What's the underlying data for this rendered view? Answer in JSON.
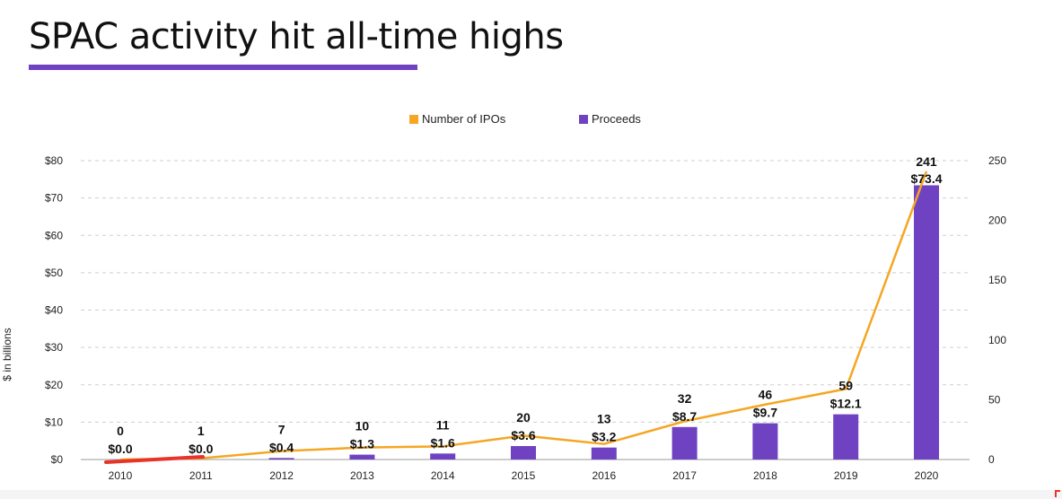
{
  "slide": {
    "title": "SPAC activity hit all-time highs",
    "accent_color": "#6f42c1"
  },
  "chart_data": {
    "type": "bar",
    "categories": [
      "2010",
      "2011",
      "2012",
      "2013",
      "2014",
      "2015",
      "2016",
      "2017",
      "2018",
      "2019",
      "2020"
    ],
    "series": [
      {
        "name": "Proceeds",
        "kind": "bar",
        "axis": "left",
        "color": "#6f42c1",
        "values": [
          0.0,
          0.0,
          0.4,
          1.3,
          1.6,
          3.6,
          3.2,
          8.7,
          9.7,
          12.1,
          73.4
        ],
        "labels": [
          "$0.0",
          "$0.0",
          "$0.4",
          "$1.3",
          "$1.6",
          "$3.6",
          "$3.2",
          "$8.7",
          "$9.7",
          "$12.1",
          "$73.4"
        ]
      },
      {
        "name": "Number of IPOs",
        "kind": "line",
        "axis": "right",
        "color": "#f5a623",
        "values": [
          0,
          1,
          7,
          10,
          11,
          20,
          13,
          32,
          46,
          59,
          241
        ],
        "labels": [
          "0",
          "1",
          "7",
          "10",
          "11",
          "20",
          "13",
          "32",
          "46",
          "59",
          "241"
        ]
      }
    ],
    "ylabel": "$ in billions",
    "ylim": [
      0,
      80
    ],
    "y_ticks": [
      "$0",
      "$10",
      "$20",
      "$30",
      "$40",
      "$50",
      "$60",
      "$70",
      "$80"
    ],
    "y2lim": [
      0,
      250
    ],
    "y2_ticks": [
      "0",
      "50",
      "100",
      "150",
      "200",
      "250"
    ],
    "grid": "dashed horizontal",
    "legend": "top-center",
    "annotation": {
      "type": "red underline",
      "from": "2010",
      "to": "2011",
      "color": "#e8332a"
    }
  }
}
